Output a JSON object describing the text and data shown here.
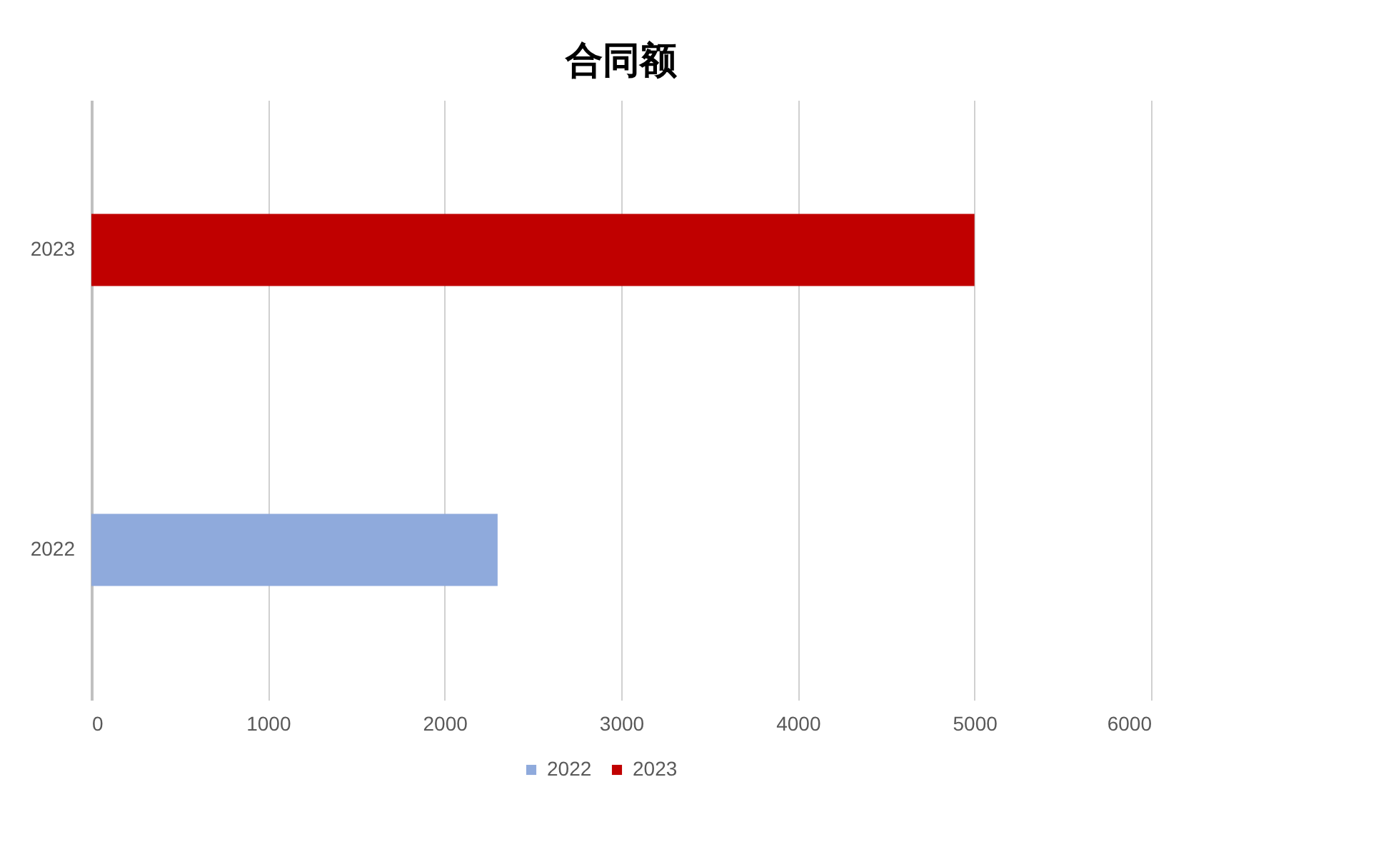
{
  "chart_data": {
    "type": "bar",
    "title": "合同额",
    "orientation": "horizontal",
    "categories": [
      "2023",
      "2022"
    ],
    "series": [
      {
        "name": "2022",
        "color": "#8faadc",
        "values": [
          null,
          2300
        ]
      },
      {
        "name": "2023",
        "color": "#c00000",
        "values": [
          5000,
          null
        ]
      }
    ],
    "xlim": [
      0,
      6000
    ],
    "xticks": [
      0,
      1000,
      2000,
      3000,
      4000,
      5000,
      6000
    ],
    "grid": "x",
    "legend": "bottom"
  }
}
